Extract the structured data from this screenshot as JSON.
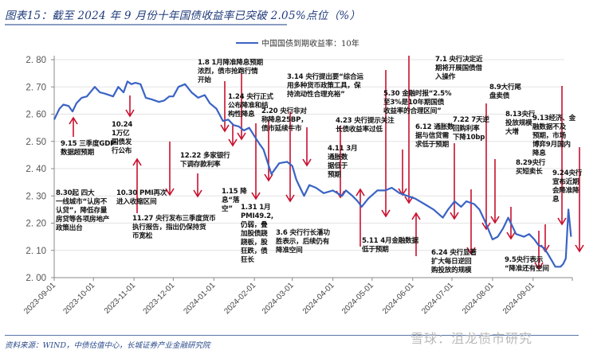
{
  "header": {
    "title": "图表15：截至 2024 年 9 月份十年国债收益率已突破 2.05%点位（%）"
  },
  "legend": {
    "series_label": "中国国债到期收益率：10年",
    "line_color": "#3a63c4"
  },
  "colors": {
    "series": "#3a63c4",
    "arrow": "#c8102e",
    "grid": "#e3e3e3",
    "axis": "#888888",
    "title": "#1f3a7a"
  },
  "footer": {
    "source": "资料来源：WIND，中债估值中心，长城证券产业金融研究院",
    "watermark": "雪球：沮龙债市研究"
  },
  "annotations": [
    {
      "id": "a0915",
      "text": "9.15 三季度GDP\n数据超预期"
    },
    {
      "id": "a0830",
      "text": "8.30起 四大\n一线城市“认房不\n认贷”，降低存量\n房贷等各项房地产\n政策出台"
    },
    {
      "id": "a1024",
      "text": "10.24\n1万亿\n国债发\n行公布"
    },
    {
      "id": "a1030",
      "text": "10.30 PMI再次\n进入收缩区间"
    },
    {
      "id": "a1127",
      "text": "11.27 央行发布三季度货币\n执行报告，指出仍保持货\n币宽松"
    },
    {
      "id": "a1222",
      "text": "12.22 多家银行\n下调存款利率"
    },
    {
      "id": "a0108",
      "text": "1.8 1月降准降息预期\n浓烈，债市抢跑行情\n开始"
    },
    {
      "id": "a0124",
      "text": "1.24 央行正式\n公布降准和结\n构性降息"
    },
    {
      "id": "a0115",
      "text": "1.15 降\n息“落\n空”"
    },
    {
      "id": "a0131",
      "text": "1.31 1月\nPMI49.2,\n仍弱，叠\n加股债跷\n跷板，股\n狂跌，债\n狂长"
    },
    {
      "id": "a0220",
      "text": "2.20 央行非对\n称降息25BP，\n债市延续牛市"
    },
    {
      "id": "a0314",
      "text": "3.14 央行提出要“综合运\n用多种货币政策工具，保\n持流动性合理充裕”"
    },
    {
      "id": "a0306",
      "text": "3.6 央行行长潘功\n胜表示，后续仍有\n降准空间"
    },
    {
      "id": "a0411",
      "text": "4.11 3月\n通胀数\n据低于\n预期"
    },
    {
      "id": "a0423",
      "text": "4.23 央行提示关注\n长债收益率过低"
    },
    {
      "id": "a0511",
      "text": "5.11 4月金融数据\n低于预期"
    },
    {
      "id": "a0530",
      "text": "5.30 金融时报“2.5%\n至3%是10年期国债\n收益率的合理区间”"
    },
    {
      "id": "a0612",
      "text": "6.12 通胀数\n据与信贷需\n求低于预期"
    },
    {
      "id": "a0624",
      "text": "6.24 央行显著\n扩大每日逆回\n购投放的规模"
    },
    {
      "id": "a0701",
      "text": "7.1 央行决定近\n期将开展国债借\n入操作"
    },
    {
      "id": "a0722",
      "text": "7.22 7天逆\n回购利率\n下降10bp"
    },
    {
      "id": "a0809",
      "text": "8.9大行尾\n盘卖债"
    },
    {
      "id": "a0813",
      "text": "8.13央行\n投放规模\n大增"
    },
    {
      "id": "a0913",
      "text": "9.13经济、金\n融数据不及\n预期，市场\n博弈9月国内\n降息"
    },
    {
      "id": "a0829",
      "text": "8.29央行\n买短卖长"
    },
    {
      "id": "a0924",
      "text": "9.24央行\n宣布近期\n会降准降\n息"
    },
    {
      "id": "a0905",
      "text": "9.5央行表示\n“降准还有空间"
    }
  ],
  "chart_data": {
    "type": "line",
    "title": "截至 2024 年 9 月份十年国债收益率已突破 2.05%点位（%）",
    "xlabel": "",
    "ylabel": "%",
    "ylim": [
      2.0,
      2.8
    ],
    "yticks": [
      "2.80",
      "2.70",
      "2.60",
      "2.50",
      "2.40",
      "2.30",
      "2.20",
      "2.10",
      "2.00"
    ],
    "xticks": [
      "2023-09-01",
      "2023-10-01",
      "2023-11-01",
      "2023-12-01",
      "2024-01-01",
      "2024-02-01",
      "2024-03-01",
      "2024-04-01",
      "2024-05-01",
      "2024-06-01",
      "2024-07-01",
      "2024-08-01",
      "2024-09-01"
    ],
    "grid": true,
    "legend_position": "top-right",
    "series": [
      {
        "name": "中国国债到期收益率：10年",
        "x": [
          "2023-09-01",
          "2023-09-05",
          "2023-09-08",
          "2023-09-12",
          "2023-09-15",
          "2023-09-18",
          "2023-09-22",
          "2023-09-26",
          "2023-10-02",
          "2023-10-06",
          "2023-10-10",
          "2023-10-16",
          "2023-10-20",
          "2023-10-24",
          "2023-10-27",
          "2023-10-30",
          "2023-11-02",
          "2023-11-06",
          "2023-11-10",
          "2023-11-14",
          "2023-11-20",
          "2023-11-24",
          "2023-11-28",
          "2023-12-01",
          "2023-12-05",
          "2023-12-10",
          "2023-12-15",
          "2023-12-20",
          "2023-12-25",
          "2023-12-29",
          "2024-01-03",
          "2024-01-08",
          "2024-01-12",
          "2024-01-16",
          "2024-01-20",
          "2024-01-24",
          "2024-01-28",
          "2024-02-01",
          "2024-02-05",
          "2024-02-08",
          "2024-02-14",
          "2024-02-20",
          "2024-02-26",
          "2024-03-01",
          "2024-03-04",
          "2024-03-06",
          "2024-03-10",
          "2024-03-14",
          "2024-03-19",
          "2024-03-25",
          "2024-04-01",
          "2024-04-08",
          "2024-04-11",
          "2024-04-16",
          "2024-04-20",
          "2024-04-23",
          "2024-04-28",
          "2024-05-05",
          "2024-05-11",
          "2024-05-16",
          "2024-05-22",
          "2024-05-28",
          "2024-06-03",
          "2024-06-10",
          "2024-06-17",
          "2024-06-24",
          "2024-06-28",
          "2024-07-03",
          "2024-07-08",
          "2024-07-12",
          "2024-07-18",
          "2024-07-22",
          "2024-07-26",
          "2024-08-01",
          "2024-08-05",
          "2024-08-09",
          "2024-08-13",
          "2024-08-19",
          "2024-08-25",
          "2024-08-29",
          "2024-09-02",
          "2024-09-05",
          "2024-09-09",
          "2024-09-12",
          "2024-09-18",
          "2024-09-22",
          "2024-09-24",
          "2024-09-26",
          "2024-09-28",
          "2024-09-30"
        ],
        "values": [
          2.58,
          2.62,
          2.635,
          2.63,
          2.61,
          2.64,
          2.66,
          2.665,
          2.7,
          2.68,
          2.675,
          2.665,
          2.7,
          2.68,
          2.72,
          2.71,
          2.715,
          2.71,
          2.66,
          2.655,
          2.645,
          2.65,
          2.665,
          2.665,
          2.7,
          2.71,
          2.68,
          2.66,
          2.67,
          2.64,
          2.62,
          2.575,
          2.58,
          2.56,
          2.555,
          2.54,
          2.55,
          2.52,
          2.49,
          2.47,
          2.38,
          2.42,
          2.425,
          2.41,
          2.36,
          2.34,
          2.3,
          2.34,
          2.33,
          2.31,
          2.32,
          2.3,
          2.32,
          2.3,
          2.28,
          2.26,
          2.29,
          2.32,
          2.32,
          2.33,
          2.31,
          2.3,
          2.29,
          2.27,
          2.25,
          2.22,
          2.25,
          2.28,
          2.26,
          2.28,
          2.27,
          2.25,
          2.21,
          2.14,
          2.15,
          2.18,
          2.22,
          2.16,
          2.15,
          2.16,
          2.14,
          2.12,
          2.11,
          2.09,
          2.04,
          2.04,
          2.05,
          2.07,
          2.25,
          2.15
        ]
      }
    ]
  }
}
